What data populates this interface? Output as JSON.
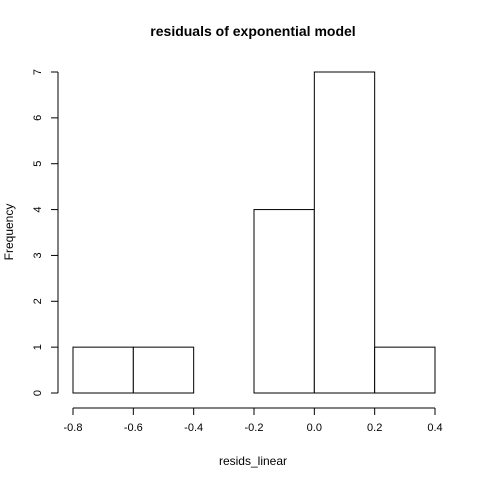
{
  "chart_data": {
    "type": "bar",
    "title": "residuals of exponential model",
    "xlabel": "resids_linear",
    "ylabel": "Frequency",
    "bins": [
      {
        "x0": -0.8,
        "x1": -0.6,
        "count": 1
      },
      {
        "x0": -0.6,
        "x1": -0.4,
        "count": 1
      },
      {
        "x0": -0.4,
        "x1": -0.2,
        "count": 0
      },
      {
        "x0": -0.2,
        "x1": 0.0,
        "count": 4
      },
      {
        "x0": 0.0,
        "x1": 0.2,
        "count": 7
      },
      {
        "x0": 0.2,
        "x1": 0.4,
        "count": 1
      }
    ],
    "xlim": [
      -0.8,
      0.4
    ],
    "ylim": [
      0,
      7
    ],
    "x_ticks": [
      "-0.8",
      "-0.6",
      "-0.4",
      "-0.2",
      "0.0",
      "0.2",
      "0.4"
    ],
    "y_ticks": [
      "0",
      "1",
      "2",
      "3",
      "4",
      "5",
      "6",
      "7"
    ],
    "grid": false,
    "legend": "none",
    "bar_fill": "#ffffff",
    "bar_stroke": "#000000"
  }
}
